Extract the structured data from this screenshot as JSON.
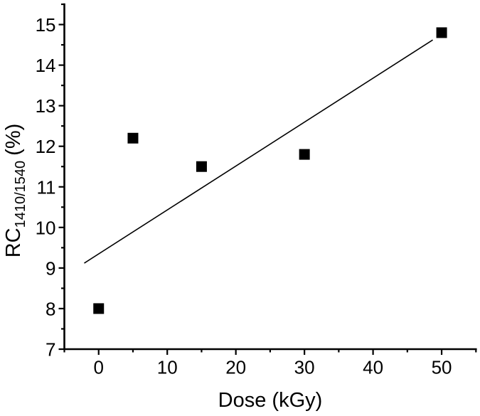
{
  "chart_data": {
    "type": "scatter",
    "title": "",
    "xlabel": "Dose (kGy)",
    "ylabel_main": "RC",
    "ylabel_sub": "1410/1540",
    "ylabel_unit": "(%)",
    "points": [
      {
        "x": 0,
        "y": 8.0
      },
      {
        "x": 5,
        "y": 12.2
      },
      {
        "x": 15,
        "y": 11.5
      },
      {
        "x": 30,
        "y": 11.8
      },
      {
        "x": 50,
        "y": 14.8
      }
    ],
    "trend_line": {
      "x1": -2.1,
      "y1": 9.12,
      "x2": 48.7,
      "y2": 14.62
    },
    "xlim": [
      -5,
      55
    ],
    "ylim": [
      7,
      15.5
    ],
    "x_major_ticks": [
      0,
      10,
      20,
      30,
      40,
      50
    ],
    "x_minor_step": 5,
    "y_major_ticks": [
      7,
      8,
      9,
      10,
      11,
      12,
      13,
      14,
      15
    ],
    "y_minor_step": 0.5,
    "grid": "off",
    "legend": "none",
    "marker": "filled-square",
    "marker_size": 15,
    "colors": {
      "background": "#ffffff",
      "axis": "#000000",
      "marker": "#000000",
      "trend_line": "#000000"
    }
  }
}
